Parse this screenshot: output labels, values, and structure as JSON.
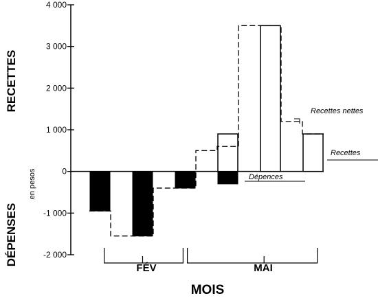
{
  "chart_data": {
    "type": "bar",
    "ylabel_positive": "RECETTES",
    "ylabel_negative": "DÉPENSES",
    "yunit": "en pesos",
    "xlabel": "MOIS",
    "ylim": [
      -2000,
      4000
    ],
    "yticks": [
      4000,
      3000,
      2000,
      1000,
      0,
      -1000,
      -2000
    ],
    "ytick_labels": [
      "4 000",
      "3 000",
      "2 000",
      "1 000",
      "0",
      "-1 000",
      "-2 000"
    ],
    "months": [
      "FÉV",
      "MAI"
    ],
    "periods": 6,
    "series": [
      {
        "name": "Recettes",
        "values": [
          0,
          0,
          0,
          0,
          0,
          0,
          900,
          0,
          3500,
          0,
          900
        ]
      },
      {
        "name": "Dépenses",
        "values": [
          -950,
          0,
          -1550,
          0,
          -400,
          0,
          -300,
          0,
          0,
          0,
          0
        ]
      },
      {
        "name": "Recettes nettes",
        "values": [
          -950,
          -1550,
          -1550,
          -400,
          -400,
          500,
          600,
          3500,
          3500,
          1200,
          900
        ]
      }
    ],
    "annotations": [
      "Recettes nettes",
      "Recettes",
      "Dépences"
    ],
    "colors": {
      "recettes_fill": "#ffffff",
      "depenses_fill": "#000000",
      "line": "#000000"
    }
  }
}
